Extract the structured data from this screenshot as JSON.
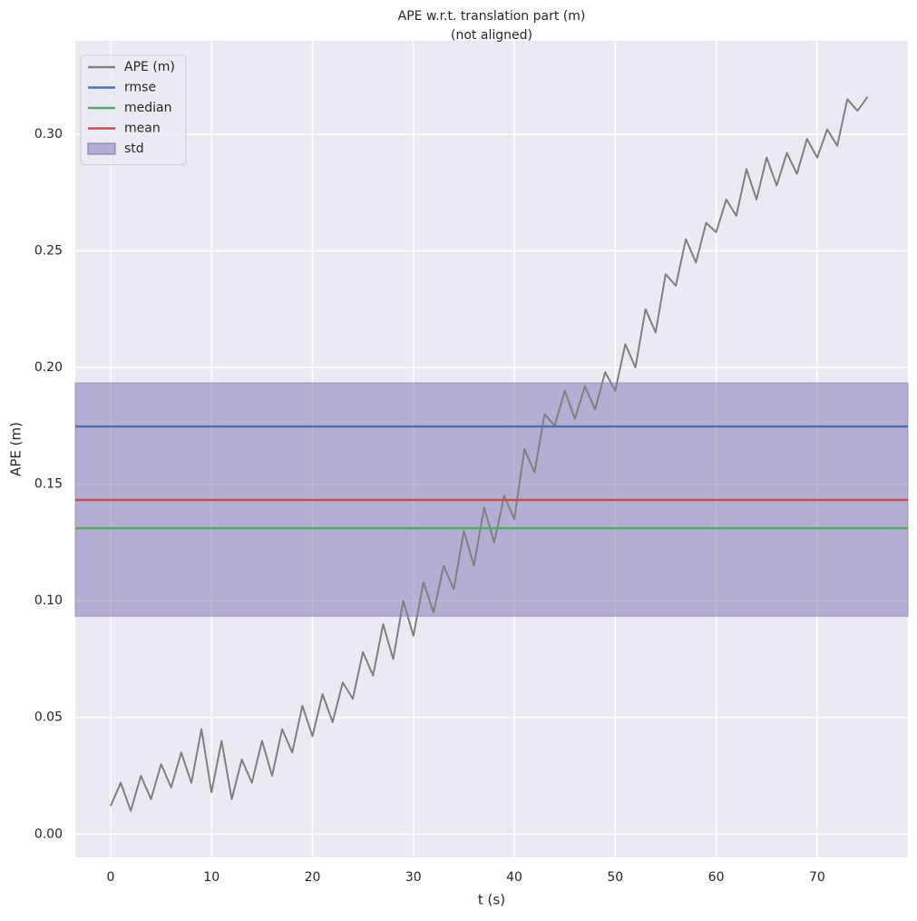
{
  "chart_data": {
    "type": "line",
    "title": "APE w.r.t. translation part (m)",
    "subtitle": "(not aligned)",
    "x_label": "t (s)",
    "y_label": "APE (m)",
    "xlim": [
      -3.5,
      79
    ],
    "ylim": [
      -0.01,
      0.34
    ],
    "xticks": [
      0,
      10,
      20,
      30,
      40,
      50,
      60,
      70
    ],
    "yticks": [
      {
        "value": 0,
        "label": "0.00"
      },
      0.05,
      {
        "value": 0.1,
        "label": "0.10"
      },
      0.15,
      {
        "value": 0.2,
        "label": "0.20"
      },
      0.25,
      {
        "value": 0.3,
        "label": "0.30"
      }
    ],
    "grid": true,
    "legend": "upper left",
    "series": [
      {
        "name": "APE (m)",
        "color": "#808080",
        "x": [
          0,
          1,
          2,
          3,
          4,
          5,
          6,
          7,
          8,
          9,
          10,
          11,
          12,
          13,
          14,
          15,
          16,
          17,
          18,
          19,
          20,
          21,
          22,
          23,
          24,
          25,
          26,
          27,
          28,
          29,
          30,
          31,
          32,
          33,
          34,
          35,
          36,
          37,
          38,
          39,
          40,
          41,
          42,
          43,
          44,
          45,
          46,
          47,
          48,
          49,
          50,
          51,
          52,
          53,
          54,
          55,
          56,
          57,
          58,
          59,
          60,
          61,
          62,
          63,
          64,
          65,
          66,
          67,
          68,
          69,
          70,
          71,
          72,
          73,
          74,
          75
        ],
        "values": [
          0.012,
          0.022,
          0.01,
          0.025,
          0.015,
          0.03,
          0.02,
          0.035,
          0.022,
          0.045,
          0.018,
          0.04,
          0.015,
          0.032,
          0.022,
          0.04,
          0.025,
          0.045,
          0.035,
          0.055,
          0.042,
          0.06,
          0.048,
          0.065,
          0.058,
          0.078,
          0.068,
          0.09,
          0.075,
          0.1,
          0.085,
          0.108,
          0.095,
          0.115,
          0.105,
          0.13,
          0.115,
          0.14,
          0.125,
          0.145,
          0.135,
          0.165,
          0.155,
          0.18,
          0.175,
          0.19,
          0.178,
          0.192,
          0.182,
          0.198,
          0.19,
          0.21,
          0.2,
          0.225,
          0.215,
          0.24,
          0.235,
          0.255,
          0.245,
          0.262,
          0.258,
          0.272,
          0.265,
          0.285,
          0.272,
          0.29,
          0.278,
          0.292,
          0.283,
          0.298,
          0.29,
          0.302,
          0.295,
          0.315,
          0.31,
          0.316
        ]
      }
    ],
    "hlines": [
      {
        "name": "rmse",
        "color": "#4c72b0",
        "value": 0.1747
      },
      {
        "name": "median",
        "color": "#55a868",
        "value": 0.1311
      },
      {
        "name": "mean",
        "color": "#c44e52",
        "value": 0.1432
      }
    ],
    "band": {
      "name": "std",
      "color": "#8172b2",
      "values": [
        0.0934,
        0.1934
      ]
    }
  }
}
